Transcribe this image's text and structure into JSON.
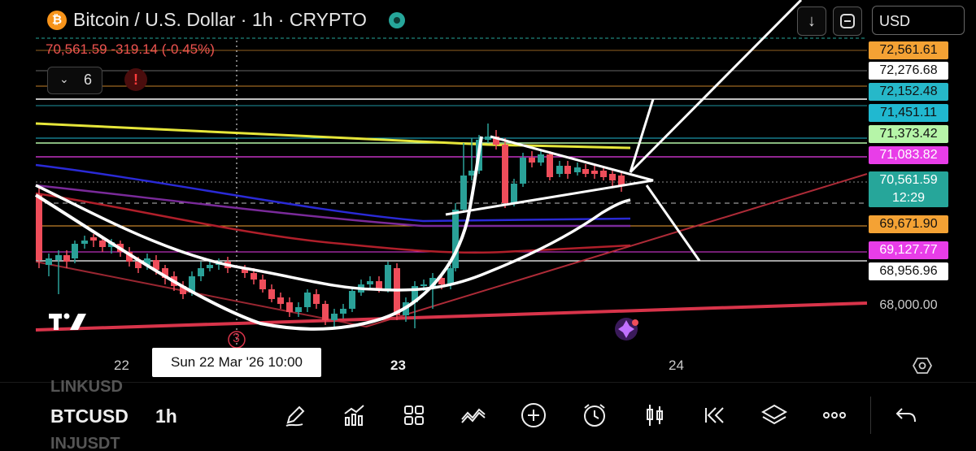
{
  "header": {
    "coin_glyph": "₿",
    "title": "Bitcoin / U.S. Dollar · 1h · CRYPTO",
    "down_icon": "↓",
    "currency": "USD"
  },
  "price_change": "70,561.59  -319.14 (-0.45%)",
  "indicators": {
    "chevron": "⌄",
    "count": "6",
    "alert_glyph": "!"
  },
  "price_labels": [
    {
      "text": "72,561.61",
      "bg": "#f4a234",
      "fg": "#111111"
    },
    {
      "text": "72,276.68",
      "bg": "#ffffff",
      "fg": "#111111"
    },
    {
      "text": "72,152.48",
      "bg": "#26b8c9",
      "fg": "#111111"
    },
    {
      "text": "71,451.11",
      "bg": "#20b8d0",
      "fg": "#111111"
    },
    {
      "text": "71,373.42",
      "bg": "#b6f5a8",
      "fg": "#111111"
    },
    {
      "text": "71,083.82",
      "bg": "#e83de8",
      "fg": "#ffffff"
    },
    {
      "text": "70,561.59",
      "bg": "#26a69a",
      "fg": "#ffffff"
    },
    {
      "text": "12:29",
      "bg": "#26a69a",
      "fg": "#ffffff"
    },
    {
      "text": "69,671.90",
      "bg": "#f4a234",
      "fg": "#111111"
    },
    {
      "text": "69,127.77",
      "bg": "#e83de8",
      "fg": "#ffffff"
    },
    {
      "text": "68,956.96",
      "bg": "#ffffff",
      "fg": "#111111"
    },
    {
      "text": "68,000.00",
      "bg": "transparent",
      "fg": "#cccccc"
    }
  ],
  "time_axis": {
    "label_22": "22",
    "label_23": "23",
    "label_24": "24",
    "crosshair": "Sun 22 Mar '26   10:00",
    "marker": "3"
  },
  "toolbar": {
    "watch_prev": "LINKUSD",
    "symbol": "BTCUSD",
    "interval": "1h",
    "watch_next": "INJUSDT",
    "icons": [
      "draw-pencil-icon",
      "indicators-icon",
      "layout-grid-icon",
      "patterns-icon",
      "add-icon",
      "alert-clock-icon",
      "chart-type-icon",
      "replay-icon",
      "layers-icon",
      "more-icon",
      "undo-icon"
    ]
  },
  "colors": {
    "up": "#2aa198",
    "down": "#ef4d5a",
    "bg": "#000000"
  }
}
